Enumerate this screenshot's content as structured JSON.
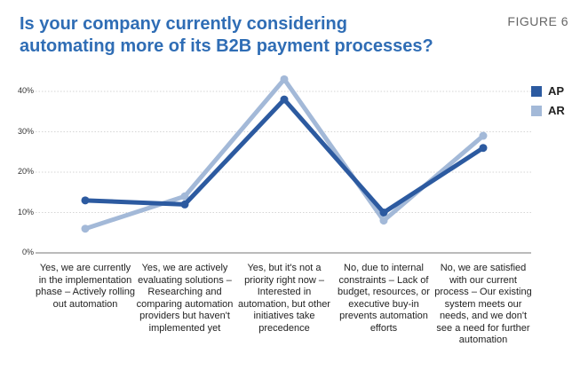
{
  "figure_label": "FIGURE 6",
  "chart_data": {
    "type": "line",
    "title": "Is your company currently considering automating more of its B2B payment processes?",
    "xlabel": "",
    "ylabel": "",
    "ylim": [
      0,
      40
    ],
    "yticks": [
      0,
      10,
      20,
      30,
      40
    ],
    "ytick_labels": [
      "0%",
      "10%",
      "20%",
      "30%",
      "40%"
    ],
    "grid": true,
    "legend_position": "top-right",
    "categories": [
      "Yes, we are currently in the implementation phase – Actively rolling out automation",
      "Yes, we are actively evaluating solutions – Researching and comparing automation providers but haven't implemented yet",
      "Yes, but it's not a priority right now – Interested in automation, but other initiatives take precedence",
      "No, due to internal constraints – Lack of budget, resources, or executive buy-in prevents automation efforts",
      "No, we are satisfied with our current process – Our existing system meets our needs, and we don't see a need for further automation"
    ],
    "series": [
      {
        "name": "AP",
        "color": "#2c5aa0",
        "values": [
          13,
          12,
          38,
          10,
          26
        ]
      },
      {
        "name": "AR",
        "color": "#a3b9d8",
        "values": [
          6,
          14,
          43,
          8,
          29
        ]
      }
    ]
  }
}
